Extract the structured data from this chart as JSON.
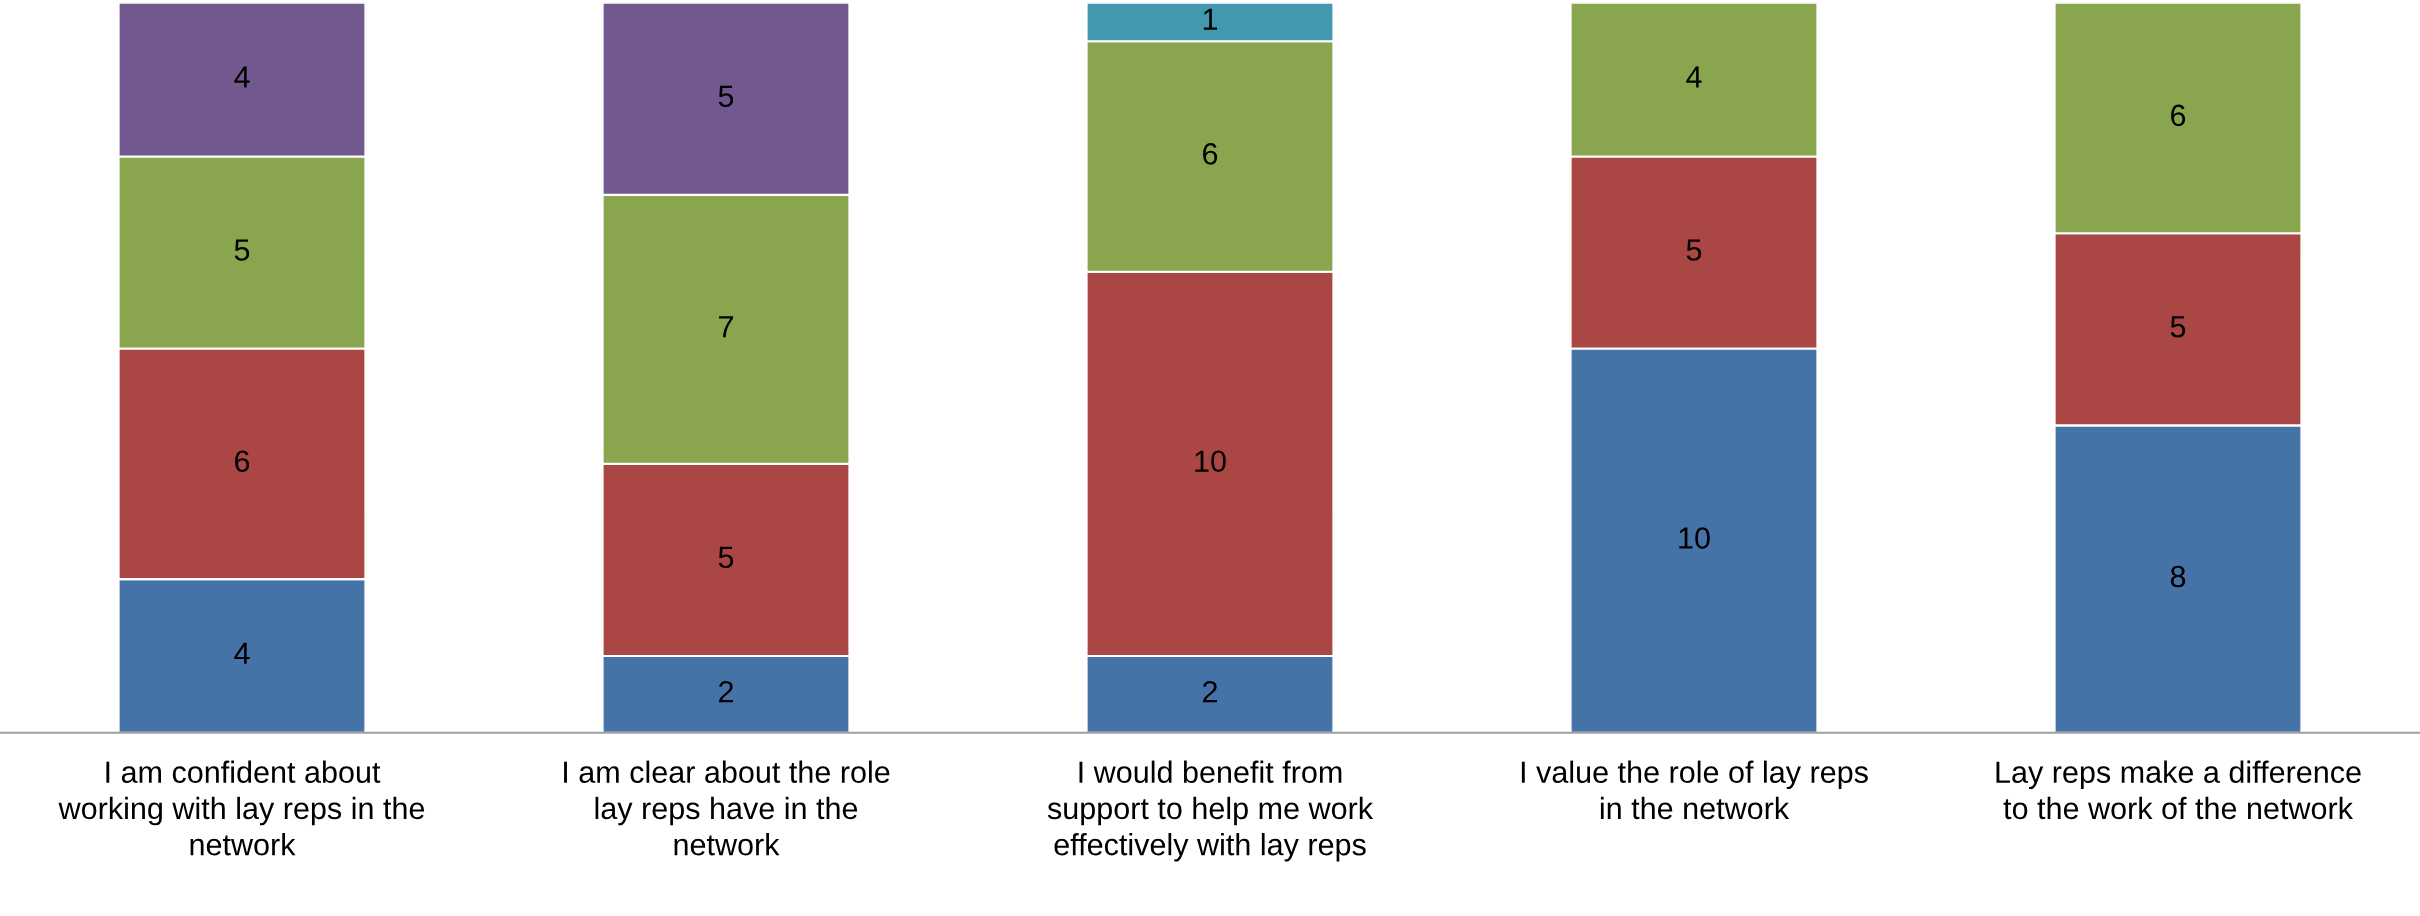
{
  "chart_data": {
    "type": "bar",
    "stacked": true,
    "data_labels": true,
    "ylim": [
      0,
      19
    ],
    "categories": [
      "I am confident about\nworking with lay reps in the\nnetwork",
      "I am clear about the role\nlay reps have in the\nnetwork",
      "I would benefit from\nsupport to help me work\neffectively with lay reps",
      "I value the role of lay reps\nin the network",
      "Lay reps make a difference\nto the work of the network"
    ],
    "series": [
      {
        "color": "#4572a7",
        "values": [
          4,
          2,
          2,
          10,
          8
        ]
      },
      {
        "color": "#aa4643",
        "values": [
          6,
          5,
          10,
          5,
          5
        ]
      },
      {
        "color": "#89a54e",
        "values": [
          5,
          7,
          6,
          4,
          6
        ]
      },
      {
        "color": "#71588f",
        "values": [
          4,
          5,
          null,
          null,
          null
        ]
      },
      {
        "color": "#4198af",
        "values": [
          null,
          null,
          1,
          null,
          null
        ]
      }
    ]
  }
}
